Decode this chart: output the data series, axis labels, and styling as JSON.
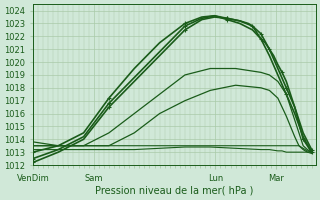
{
  "xlabel": "Pression niveau de la mer( hPa )",
  "ylim": [
    1012,
    1024.5
  ],
  "yticks": [
    1012,
    1013,
    1014,
    1015,
    1016,
    1017,
    1018,
    1019,
    1020,
    1021,
    1022,
    1023,
    1024
  ],
  "xtick_labels": [
    "VenDim",
    "Sam",
    "Lun",
    "Mar"
  ],
  "xtick_positions": [
    0,
    72,
    216,
    288
  ],
  "total_points": 336,
  "bg_color": "#d0e8d8",
  "grid_color": "#aacaaa",
  "line_color": "#1a5c1a",
  "series": [
    {
      "x": [
        0,
        30,
        60,
        90,
        120,
        150,
        180,
        200,
        215,
        230,
        245,
        260,
        270,
        280,
        290,
        300,
        310,
        320,
        330
      ],
      "y": [
        1012.2,
        1013.0,
        1014.0,
        1016.5,
        1018.5,
        1020.5,
        1022.5,
        1023.3,
        1023.5,
        1023.4,
        1023.2,
        1022.8,
        1022.2,
        1021.0,
        1019.5,
        1018.0,
        1016.5,
        1014.5,
        1013.2
      ],
      "marker": true,
      "lw": 1.2
    },
    {
      "x": [
        0,
        30,
        60,
        90,
        120,
        150,
        180,
        200,
        215,
        230,
        245,
        260,
        270,
        280,
        290,
        300,
        310,
        320,
        330
      ],
      "y": [
        1012.5,
        1013.2,
        1014.2,
        1016.8,
        1018.8,
        1020.8,
        1022.8,
        1023.4,
        1023.6,
        1023.3,
        1023.0,
        1022.5,
        1021.8,
        1020.5,
        1019.0,
        1017.5,
        1016.0,
        1014.2,
        1013.0
      ],
      "marker": true,
      "lw": 1.2
    },
    {
      "x": [
        0,
        30,
        60,
        90,
        120,
        150,
        180,
        200,
        215,
        230,
        245,
        255,
        260,
        270,
        275,
        280,
        285,
        290,
        295,
        300,
        310,
        320,
        330
      ],
      "y": [
        1013.0,
        1013.5,
        1014.5,
        1017.2,
        1019.5,
        1021.5,
        1023.0,
        1023.5,
        1023.6,
        1023.4,
        1023.2,
        1023.0,
        1022.8,
        1021.8,
        1021.5,
        1021.0,
        1020.5,
        1019.8,
        1019.2,
        1018.5,
        1016.5,
        1014.0,
        1013.0
      ],
      "marker": true,
      "lw": 1.2
    },
    {
      "x": [
        0,
        30,
        60,
        90,
        120,
        150,
        180,
        210,
        240,
        270,
        280,
        290,
        295,
        300,
        305,
        310,
        315,
        320,
        325,
        330
      ],
      "y": [
        1013.5,
        1013.5,
        1013.5,
        1014.5,
        1016.0,
        1017.5,
        1019.0,
        1019.5,
        1019.5,
        1019.2,
        1019.0,
        1018.5,
        1018.0,
        1017.5,
        1016.5,
        1015.5,
        1014.5,
        1013.5,
        1013.2,
        1013.0
      ],
      "marker": false,
      "lw": 0.9
    },
    {
      "x": [
        0,
        30,
        60,
        90,
        120,
        150,
        180,
        210,
        240,
        270,
        280,
        290,
        295,
        300,
        305,
        310,
        315,
        320,
        325,
        330
      ],
      "y": [
        1013.8,
        1013.5,
        1013.5,
        1013.5,
        1014.5,
        1016.0,
        1017.0,
        1017.8,
        1018.2,
        1018.0,
        1017.8,
        1017.2,
        1016.5,
        1015.8,
        1015.0,
        1014.2,
        1013.5,
        1013.2,
        1013.0,
        1013.0
      ],
      "marker": false,
      "lw": 0.9
    },
    {
      "x": [
        0,
        30,
        60,
        90,
        120,
        150,
        180,
        210,
        240,
        270,
        280,
        290,
        295,
        300,
        305,
        310,
        315,
        320,
        325,
        330
      ],
      "y": [
        1013.5,
        1013.5,
        1013.5,
        1013.5,
        1013.5,
        1013.5,
        1013.5,
        1013.5,
        1013.5,
        1013.5,
        1013.5,
        1013.5,
        1013.5,
        1013.5,
        1013.5,
        1013.5,
        1013.5,
        1013.3,
        1013.1,
        1013.0
      ],
      "marker": false,
      "lw": 0.8
    },
    {
      "x": [
        0,
        30,
        60,
        90,
        120,
        150,
        180,
        210,
        240,
        270,
        280,
        290,
        295,
        300,
        305,
        310,
        315,
        320,
        325,
        330
      ],
      "y": [
        1013.2,
        1013.2,
        1013.2,
        1013.2,
        1013.2,
        1013.3,
        1013.4,
        1013.4,
        1013.3,
        1013.2,
        1013.2,
        1013.1,
        1013.1,
        1013.0,
        1013.0,
        1013.0,
        1013.0,
        1013.0,
        1013.0,
        1012.9
      ],
      "marker": false,
      "lw": 0.8
    }
  ]
}
